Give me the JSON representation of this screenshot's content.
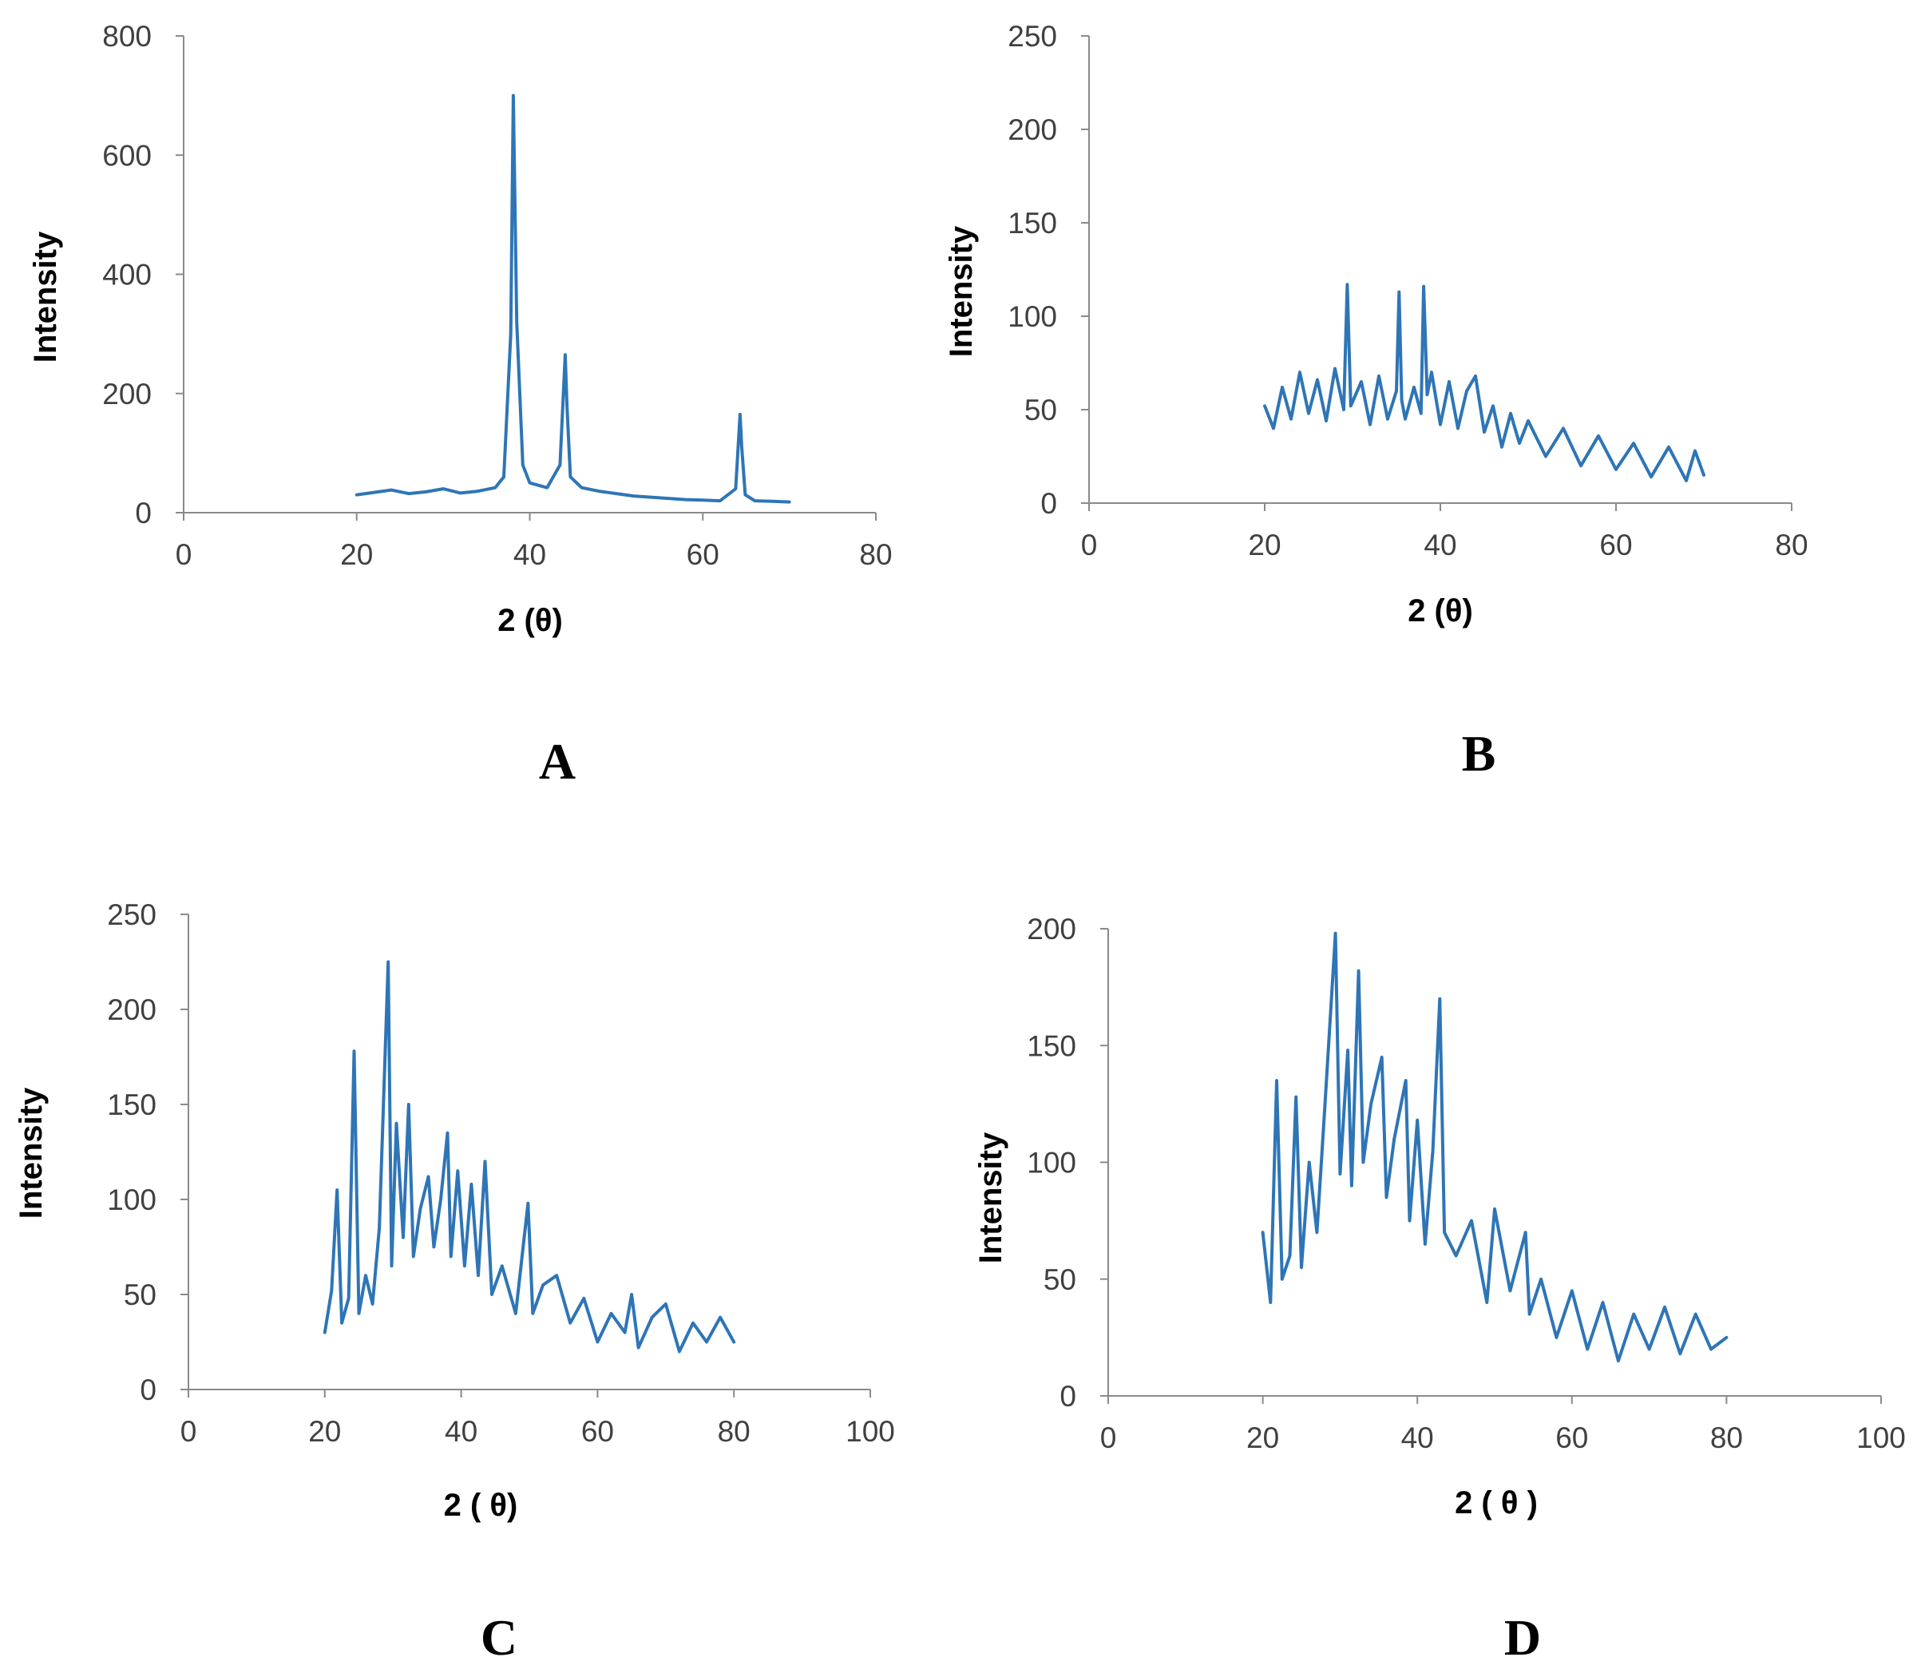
{
  "figure": {
    "series_color": "#2E75B6"
  },
  "chart_data": [
    {
      "panel": "A",
      "type": "line",
      "title": "",
      "xlabel": "2 (θ)",
      "ylabel": "Intensity",
      "xlim": [
        0,
        80
      ],
      "ylim": [
        0,
        800
      ],
      "xticks": [
        0,
        20,
        40,
        60,
        80
      ],
      "yticks": [
        0,
        200,
        400,
        600,
        800
      ],
      "grid": false,
      "legend": "none",
      "series": [
        {
          "name": "Panel A",
          "x": [
            20,
            22,
            24,
            26,
            28,
            30,
            32,
            34,
            36,
            37,
            37.8,
            38.1,
            38.5,
            39.2,
            40,
            42,
            43.5,
            44.1,
            44.3,
            44.7,
            46,
            48,
            50,
            52,
            54,
            56,
            58,
            60,
            62,
            63.8,
            64.3,
            64.5,
            64.9,
            66,
            68,
            70
          ],
          "y": [
            30,
            34,
            38,
            32,
            35,
            40,
            33,
            36,
            42,
            60,
            300,
            700,
            320,
            80,
            50,
            42,
            80,
            265,
            180,
            60,
            42,
            36,
            32,
            28,
            26,
            24,
            22,
            21,
            20,
            40,
            165,
            110,
            30,
            20,
            19,
            18
          ]
        }
      ]
    },
    {
      "panel": "B",
      "type": "line",
      "title": "",
      "xlabel": "2 (θ)",
      "ylabel": "Intensity",
      "xlim": [
        0,
        80
      ],
      "ylim": [
        0,
        250
      ],
      "xticks": [
        0,
        20,
        40,
        60,
        80
      ],
      "yticks": [
        0,
        50,
        100,
        150,
        200,
        250
      ],
      "grid": false,
      "legend": "none",
      "series": [
        {
          "name": "Panel B",
          "x": [
            20,
            21,
            22,
            23,
            24,
            25,
            26,
            27,
            28,
            29,
            29.4,
            29.8,
            31,
            32,
            33,
            34,
            35,
            35.3,
            35.6,
            36,
            37,
            37.8,
            38.1,
            38.5,
            39,
            40,
            41,
            42,
            43,
            44,
            45,
            46,
            47,
            48,
            49,
            50,
            52,
            54,
            56,
            58,
            60,
            62,
            64,
            66,
            68,
            69,
            70
          ],
          "y": [
            52,
            40,
            62,
            45,
            70,
            48,
            66,
            44,
            72,
            50,
            117,
            52,
            65,
            42,
            68,
            45,
            60,
            113,
            55,
            45,
            62,
            48,
            116,
            58,
            70,
            42,
            65,
            40,
            60,
            68,
            38,
            52,
            30,
            48,
            32,
            44,
            25,
            40,
            20,
            36,
            18,
            32,
            14,
            30,
            12,
            28,
            15
          ]
        }
      ]
    },
    {
      "panel": "C",
      "type": "line",
      "title": "",
      "xlabel": "2 ( θ)",
      "ylabel": "Intensity",
      "xlim": [
        0,
        100
      ],
      "ylim": [
        0,
        250
      ],
      "xticks": [
        0,
        20,
        40,
        60,
        80,
        100
      ],
      "yticks": [
        0,
        50,
        100,
        150,
        200,
        250
      ],
      "grid": false,
      "legend": "none",
      "series": [
        {
          "name": "Panel C",
          "x": [
            20,
            21,
            21.8,
            22.5,
            23.5,
            24.3,
            25,
            26,
            27,
            28,
            29.3,
            29.8,
            30.5,
            31.5,
            32.3,
            33,
            34,
            35.2,
            36,
            37,
            38,
            38.5,
            39.5,
            40.5,
            41.5,
            42.5,
            43.5,
            44.5,
            46,
            48,
            49.8,
            50.5,
            52,
            54,
            56,
            58,
            60,
            62,
            64,
            65,
            66,
            68,
            70,
            72,
            74,
            76,
            78,
            80
          ],
          "y": [
            30,
            52,
            105,
            35,
            48,
            178,
            40,
            60,
            45,
            85,
            225,
            65,
            140,
            80,
            150,
            70,
            95,
            112,
            75,
            100,
            135,
            70,
            115,
            65,
            108,
            60,
            120,
            50,
            65,
            40,
            98,
            40,
            55,
            60,
            35,
            48,
            25,
            40,
            30,
            50,
            22,
            38,
            45,
            20,
            35,
            25,
            38,
            25
          ]
        }
      ]
    },
    {
      "panel": "D",
      "type": "line",
      "title": "",
      "xlabel": "2 ( θ )",
      "ylabel": "Intensity",
      "xlim": [
        0,
        100
      ],
      "ylim": [
        0,
        200
      ],
      "xticks": [
        0,
        20,
        40,
        60,
        80,
        100
      ],
      "yticks": [
        0,
        50,
        100,
        150,
        200
      ],
      "grid": false,
      "legend": "none",
      "series": [
        {
          "name": "Panel D",
          "x": [
            20,
            21,
            21.8,
            22.5,
            23.5,
            24.3,
            25,
            26,
            27,
            28,
            29.4,
            30,
            31,
            31.5,
            32.4,
            33,
            34,
            35.4,
            36,
            37,
            38.5,
            39,
            40,
            41,
            42,
            42.9,
            43.5,
            45,
            47,
            49,
            50,
            52,
            54,
            54.5,
            56,
            58,
            60,
            62,
            64,
            66,
            68,
            70,
            72,
            74,
            76,
            78,
            80
          ],
          "y": [
            70,
            40,
            135,
            50,
            60,
            128,
            55,
            100,
            70,
            122,
            198,
            95,
            148,
            90,
            182,
            100,
            125,
            145,
            85,
            110,
            135,
            75,
            118,
            65,
            105,
            170,
            70,
            60,
            75,
            40,
            80,
            45,
            70,
            35,
            50,
            25,
            45,
            20,
            40,
            15,
            35,
            20,
            38,
            18,
            35,
            20,
            25
          ]
        }
      ]
    }
  ]
}
